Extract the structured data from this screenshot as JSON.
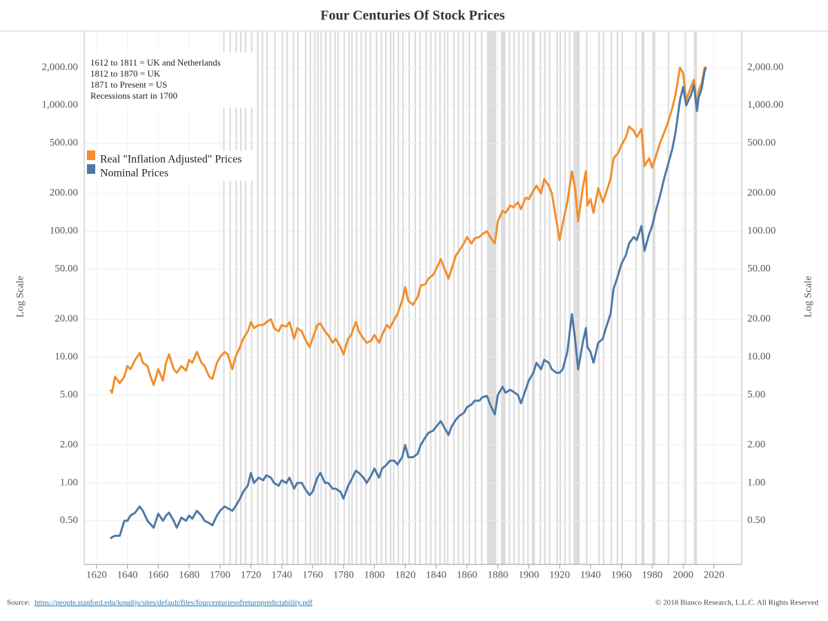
{
  "chart_data": {
    "type": "line",
    "title": "Four Centuries Of Stock Prices",
    "y_label": "Log Scale",
    "y2_label": "Log Scale",
    "annotations": [
      "1612 to 1811 = UK and Netherlands",
      "1812 to 1870 = UK",
      "1871 to Present = US",
      "Recessions start in 1700"
    ],
    "source_label": "Source:",
    "source_url": "https://people.stanford.edu/koudijs/sites/default/files/fourcenturiesofreturnpredictability.pdf",
    "copyright": "© 2018 Bianco Research, L.L.C. All Rights Reserved",
    "log_scale": true,
    "grid": true,
    "legend": "upper left",
    "xlim": [
      1612,
      2038
    ],
    "xticks": [
      1620,
      1640,
      1660,
      1680,
      1700,
      1720,
      1740,
      1760,
      1780,
      1800,
      1820,
      1840,
      1860,
      1880,
      1900,
      1920,
      1940,
      1960,
      1980,
      2000,
      2020
    ],
    "ylim": [
      0.225,
      3900
    ],
    "yticks": [
      {
        "value": 0.5,
        "label": "0.50"
      },
      {
        "value": 1,
        "label": "1.00"
      },
      {
        "value": 2,
        "label": "2.00"
      },
      {
        "value": 5,
        "label": "5.00"
      },
      {
        "value": 10,
        "label": "10.00"
      },
      {
        "value": 20,
        "label": "20.00"
      },
      {
        "value": 50,
        "label": "50.00"
      },
      {
        "value": 100,
        "label": "100.00"
      },
      {
        "value": 200,
        "label": "200.00"
      },
      {
        "value": 500,
        "label": "500.00"
      },
      {
        "value": 1000,
        "label": "1,000.00"
      },
      {
        "value": 2000,
        "label": "2,000.00"
      }
    ],
    "recession_color": "#dcdcdc",
    "recessions": [
      [
        1702,
        1703
      ],
      [
        1706,
        1707
      ],
      [
        1710,
        1711
      ],
      [
        1713,
        1714
      ],
      [
        1716,
        1717
      ],
      [
        1720,
        1721
      ],
      [
        1724,
        1725
      ],
      [
        1727,
        1728
      ],
      [
        1730,
        1731
      ],
      [
        1735,
        1736
      ],
      [
        1740,
        1741
      ],
      [
        1743,
        1744
      ],
      [
        1747,
        1748
      ],
      [
        1750,
        1751
      ],
      [
        1755,
        1756
      ],
      [
        1758,
        1759
      ],
      [
        1761,
        1762
      ],
      [
        1763,
        1764
      ],
      [
        1765,
        1766
      ],
      [
        1768,
        1769
      ],
      [
        1771,
        1772
      ],
      [
        1774,
        1775
      ],
      [
        1776,
        1777
      ],
      [
        1780,
        1781
      ],
      [
        1783,
        1784
      ],
      [
        1785,
        1786
      ],
      [
        1788,
        1789
      ],
      [
        1791,
        1792
      ],
      [
        1794,
        1795
      ],
      [
        1797,
        1798
      ],
      [
        1801,
        1802
      ],
      [
        1804,
        1805
      ],
      [
        1807,
        1808
      ],
      [
        1810,
        1811
      ],
      [
        1812,
        1813
      ],
      [
        1815,
        1816
      ],
      [
        1818,
        1819
      ],
      [
        1822,
        1823
      ],
      [
        1826,
        1827
      ],
      [
        1829,
        1830
      ],
      [
        1833,
        1834
      ],
      [
        1836,
        1837
      ],
      [
        1839,
        1840
      ],
      [
        1842,
        1843
      ],
      [
        1845,
        1846
      ],
      [
        1847,
        1848
      ],
      [
        1851,
        1852
      ],
      [
        1854,
        1855
      ],
      [
        1857,
        1858
      ],
      [
        1861,
        1862
      ],
      [
        1865,
        1866
      ],
      [
        1869,
        1870
      ],
      [
        1873,
        1879
      ],
      [
        1882,
        1885
      ],
      [
        1887,
        1888
      ],
      [
        1890,
        1891
      ],
      [
        1893,
        1894
      ],
      [
        1896,
        1897
      ],
      [
        1899,
        1900
      ],
      [
        1902,
        1904
      ],
      [
        1907,
        1908
      ],
      [
        1910,
        1911
      ],
      [
        1913,
        1914
      ],
      [
        1918,
        1919
      ],
      [
        1920,
        1921
      ],
      [
        1923,
        1924
      ],
      [
        1926,
        1927
      ],
      [
        1929,
        1933
      ],
      [
        1937,
        1938
      ],
      [
        1945,
        1946
      ],
      [
        1948,
        1949
      ],
      [
        1953,
        1954
      ],
      [
        1957,
        1958
      ],
      [
        1960,
        1961
      ],
      [
        1969,
        1970
      ],
      [
        1973,
        1975
      ],
      [
        1980,
        1982
      ],
      [
        1990,
        1991
      ],
      [
        2001,
        2002
      ],
      [
        2007,
        2009
      ]
    ],
    "x": [
      1629,
      1630,
      1632,
      1635,
      1638,
      1640,
      1642,
      1645,
      1648,
      1650,
      1653,
      1655,
      1657,
      1660,
      1663,
      1665,
      1667,
      1670,
      1672,
      1675,
      1678,
      1680,
      1682,
      1685,
      1688,
      1690,
      1693,
      1695,
      1698,
      1700,
      1703,
      1705,
      1708,
      1710,
      1713,
      1715,
      1718,
      1720,
      1722,
      1725,
      1728,
      1730,
      1733,
      1735,
      1738,
      1740,
      1743,
      1745,
      1748,
      1750,
      1753,
      1755,
      1758,
      1760,
      1763,
      1765,
      1768,
      1770,
      1773,
      1775,
      1778,
      1780,
      1783,
      1785,
      1788,
      1790,
      1793,
      1795,
      1798,
      1800,
      1803,
      1805,
      1808,
      1810,
      1813,
      1815,
      1818,
      1820,
      1822,
      1825,
      1828,
      1830,
      1833,
      1835,
      1838,
      1840,
      1843,
      1845,
      1848,
      1850,
      1853,
      1855,
      1858,
      1860,
      1863,
      1865,
      1868,
      1870,
      1873,
      1875,
      1878,
      1880,
      1883,
      1885,
      1888,
      1890,
      1893,
      1895,
      1898,
      1900,
      1903,
      1905,
      1908,
      1910,
      1913,
      1915,
      1918,
      1920,
      1922,
      1925,
      1928,
      1930,
      1932,
      1935,
      1937,
      1938,
      1940,
      1942,
      1945,
      1948,
      1950,
      1953,
      1955,
      1958,
      1960,
      1963,
      1965,
      1968,
      1970,
      1973,
      1975,
      1978,
      1980,
      1982,
      1985,
      1988,
      1990,
      1993,
      1995,
      1998,
      2000,
      2002,
      2005,
      2007,
      2009,
      2010,
      2012,
      2014,
      2015
    ],
    "series": [
      {
        "name": "Real \"Inflation Adjusted\" Prices",
        "color": "#f28e2b",
        "values": [
          5.5,
          5.2,
          7,
          6.2,
          7,
          8.5,
          8,
          9.5,
          10.8,
          9,
          8.5,
          7,
          6,
          8,
          6.5,
          9,
          10.5,
          8,
          7.5,
          8.5,
          7.8,
          9.5,
          9,
          11,
          9,
          8.5,
          7,
          6.7,
          9,
          10,
          11,
          10.5,
          8,
          10,
          12,
          14,
          16,
          19,
          17,
          18,
          18,
          19,
          20,
          17,
          16,
          18,
          17.5,
          19,
          14,
          17,
          16,
          14,
          12,
          14,
          18,
          18.5,
          16,
          15,
          13,
          14,
          12,
          10.5,
          14,
          15,
          19,
          16,
          14,
          13,
          13.5,
          15,
          13,
          15,
          18,
          17,
          20,
          22,
          28,
          36,
          28,
          26,
          30,
          37,
          38,
          42,
          45,
          50,
          60,
          52,
          42,
          50,
          65,
          70,
          80,
          90,
          80,
          88,
          90,
          95,
          100,
          90,
          80,
          120,
          145,
          140,
          160,
          155,
          170,
          150,
          185,
          180,
          210,
          230,
          200,
          260,
          230,
          200,
          120,
          85,
          115,
          170,
          300,
          220,
          120,
          220,
          300,
          160,
          180,
          140,
          220,
          170,
          200,
          260,
          380,
          420,
          480,
          560,
          680,
          630,
          560,
          650,
          330,
          380,
          320,
          380,
          500,
          620,
          720,
          950,
          1200,
          2000,
          1800,
          1100,
          1400,
          1600,
          950,
          1300,
          1500,
          2000,
          2000
        ]
      },
      {
        "name": "Nominal Prices",
        "color": "#4e79a7",
        "values": [
          0.36,
          0.37,
          0.38,
          0.38,
          0.5,
          0.5,
          0.55,
          0.58,
          0.65,
          0.6,
          0.5,
          0.47,
          0.44,
          0.57,
          0.5,
          0.55,
          0.58,
          0.5,
          0.44,
          0.53,
          0.5,
          0.55,
          0.52,
          0.6,
          0.55,
          0.5,
          0.48,
          0.46,
          0.55,
          0.6,
          0.65,
          0.63,
          0.6,
          0.65,
          0.75,
          0.85,
          0.95,
          1.2,
          1.0,
          1.1,
          1.05,
          1.15,
          1.1,
          1.0,
          0.95,
          1.05,
          1.0,
          1.1,
          0.9,
          1.0,
          1.0,
          0.9,
          0.8,
          0.85,
          1.1,
          1.2,
          1.0,
          1.0,
          0.9,
          0.9,
          0.85,
          0.75,
          0.95,
          1.05,
          1.25,
          1.2,
          1.1,
          1.0,
          1.15,
          1.3,
          1.1,
          1.3,
          1.4,
          1.5,
          1.5,
          1.4,
          1.6,
          2.0,
          1.6,
          1.6,
          1.7,
          2.0,
          2.3,
          2.5,
          2.6,
          2.8,
          3.1,
          2.8,
          2.4,
          2.8,
          3.2,
          3.4,
          3.6,
          4.0,
          4.2,
          4.5,
          4.5,
          4.8,
          4.9,
          4.2,
          3.5,
          5.0,
          5.8,
          5.2,
          5.5,
          5.3,
          5.0,
          4.3,
          5.5,
          6.5,
          7.5,
          9,
          8,
          9.5,
          9,
          8,
          7.5,
          7.5,
          8,
          11,
          22,
          14,
          8,
          13,
          17,
          12,
          11,
          9,
          13,
          14,
          17,
          22,
          35,
          45,
          55,
          65,
          80,
          90,
          85,
          110,
          70,
          95,
          110,
          140,
          190,
          270,
          330,
          450,
          600,
          1100,
          1400,
          1000,
          1200,
          1450,
          900,
          1150,
          1350,
          1900,
          2000
        ]
      }
    ]
  }
}
